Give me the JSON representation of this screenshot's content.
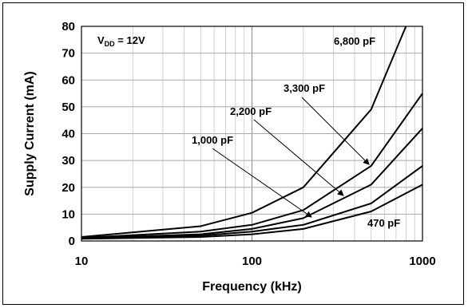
{
  "chart_data": {
    "type": "line",
    "xlabel": "Frequency (kHz)",
    "ylabel": "Supply Current (mA)",
    "x_scale": "log",
    "xlim": [
      10,
      1000
    ],
    "ylim": [
      0,
      80
    ],
    "x_ticks": [
      "10",
      "100",
      "1000"
    ],
    "y_ticks": [
      "0",
      "10",
      "20",
      "30",
      "40",
      "50",
      "60",
      "70",
      "80"
    ],
    "grid": true,
    "condition_label": {
      "main": "V",
      "sub": "DD",
      "rest": " = 12V"
    },
    "series": [
      {
        "name": "470 pF",
        "x": [
          10,
          50,
          100,
          200,
          500,
          1000
        ],
        "y": [
          0.8,
          1.5,
          2.5,
          4.5,
          11,
          21
        ]
      },
      {
        "name": "1,000 pF",
        "x": [
          10,
          50,
          100,
          200,
          500,
          1000
        ],
        "y": [
          0.9,
          2.0,
          3.5,
          6.0,
          14,
          28
        ]
      },
      {
        "name": "2,200 pF",
        "x": [
          10,
          50,
          100,
          200,
          500,
          1000
        ],
        "y": [
          1.0,
          2.5,
          4.5,
          8.5,
          21,
          42
        ]
      },
      {
        "name": "3,300 pF",
        "x": [
          10,
          50,
          100,
          200,
          500,
          1000
        ],
        "y": [
          1.2,
          3.5,
          6.0,
          11.5,
          28,
          55
        ]
      },
      {
        "name": "6,800 pF",
        "x": [
          10,
          50,
          100,
          200,
          500,
          800
        ],
        "y": [
          1.5,
          5.5,
          10.5,
          20,
          49,
          80
        ]
      }
    ],
    "annotations": [
      {
        "text": "6,800 pF",
        "series": "6,800 pF"
      },
      {
        "text": "3,300 pF",
        "series": "3,300 pF"
      },
      {
        "text": "2,200 pF",
        "series": "2,200 pF"
      },
      {
        "text": "1,000 pF",
        "series": "1,000 pF"
      },
      {
        "text": "470 pF",
        "series": "470 pF"
      }
    ]
  }
}
